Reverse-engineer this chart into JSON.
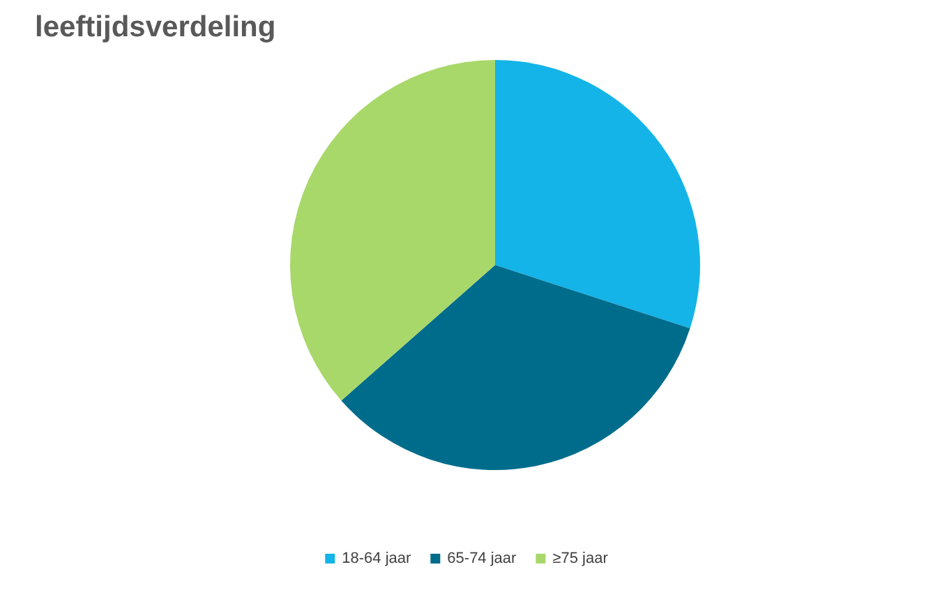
{
  "chart_data": {
    "type": "pie",
    "title": "leeftijdsverdeling",
    "categories": [
      "18-64 jaar",
      "65-74 jaar",
      "≥75 jaar"
    ],
    "values": [
      30,
      33.5,
      36.5
    ],
    "colors": [
      "#14b4e8",
      "#006c8c",
      "#a8d86a"
    ],
    "legend": "bottom"
  }
}
